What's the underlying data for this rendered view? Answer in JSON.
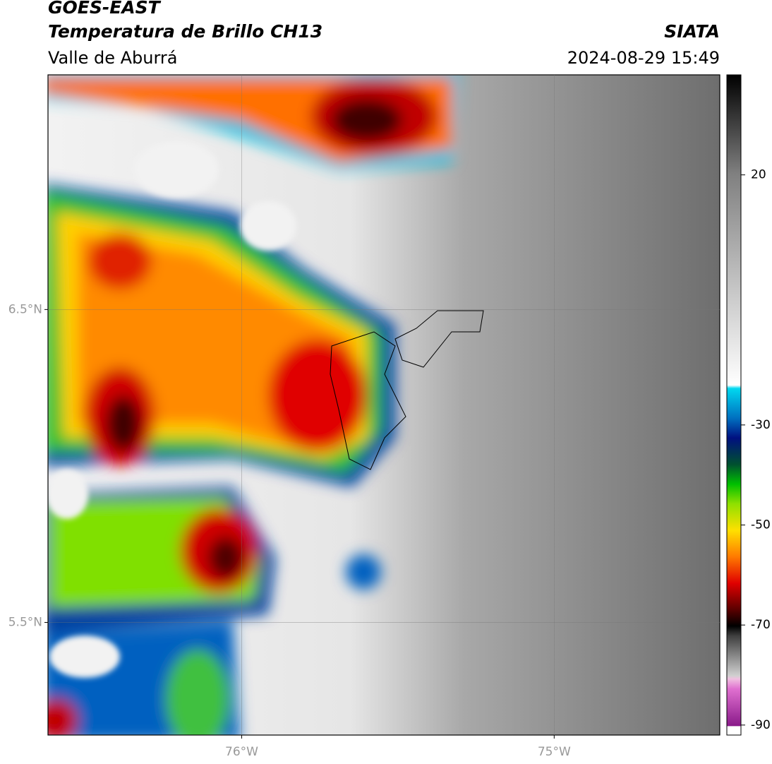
{
  "header": {
    "title": "GOES-EAST",
    "subtitle": "Temperatura de Brillo CH13",
    "region": "Valle de Aburrá",
    "source": "SIATA",
    "datetime": "2024-08-29 15:49"
  },
  "map": {
    "lonlim": [
      -76.62,
      -74.47
    ],
    "latlim": [
      5.14,
      7.25
    ],
    "lat_ticks": [
      {
        "value": 6.5,
        "label": "6.5°N"
      },
      {
        "value": 5.5,
        "label": "5.5°N"
      }
    ],
    "lon_ticks": [
      {
        "value": -76,
        "label": "76°W"
      },
      {
        "value": -75,
        "label": "75°W"
      }
    ]
  },
  "colorbar": {
    "lim": [
      -92,
      40
    ],
    "ticks": [
      20,
      -30,
      -50,
      -70,
      -90
    ]
  }
}
